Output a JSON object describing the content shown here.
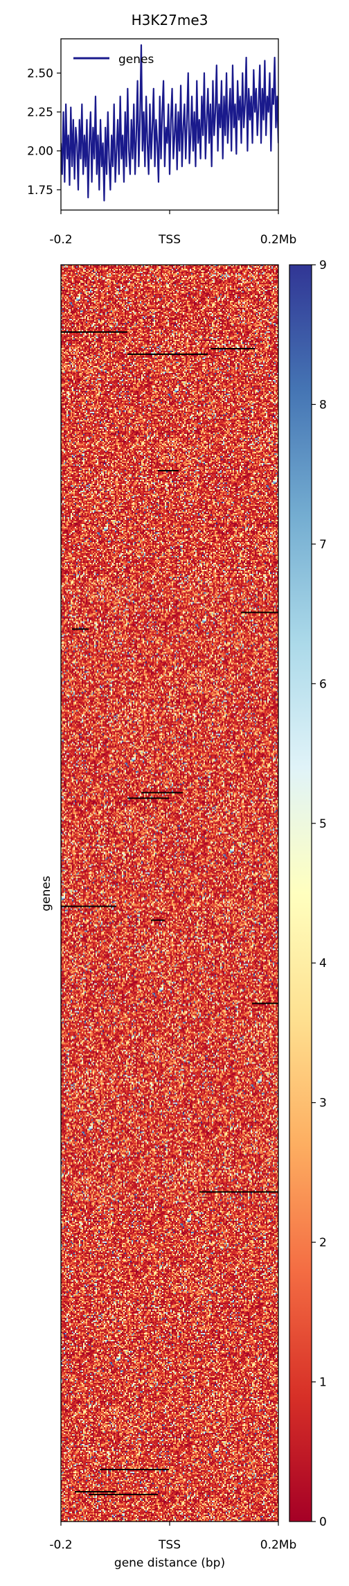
{
  "chart_data": [
    {
      "type": "line",
      "title": "H3K27me3",
      "x_ticks": [
        "-0.2",
        "TSS",
        "0.2Mb"
      ],
      "y_ticks": [
        "1.75",
        "2.00",
        "2.25",
        "2.50"
      ],
      "ylim": [
        1.62,
        2.72
      ],
      "legend": {
        "position": "top-left",
        "entries": [
          "genes"
        ]
      },
      "series": [
        {
          "name": "genes",
          "color": "#1a1a8c",
          "values": [
            2.05,
            1.85,
            2.25,
            1.8,
            2.3,
            1.95,
            2.1,
            1.78,
            2.28,
            1.9,
            2.2,
            1.82,
            2.15,
            2.05,
            1.75,
            2.2,
            1.95,
            2.3,
            1.85,
            2.1,
            1.9,
            2.2,
            1.7,
            2.05,
            2.25,
            1.8,
            2.15,
            1.95,
            2.35,
            1.85,
            2.1,
            1.75,
            2.2,
            1.9,
            2.05,
            1.68,
            2.15,
            1.85,
            2.25,
            1.95,
            1.75,
            2.1,
            1.9,
            2.3,
            1.8,
            2.0,
            2.2,
            1.85,
            2.35,
            1.95,
            2.1,
            1.8,
            2.25,
            1.9,
            2.4,
            2.0,
            1.85,
            2.2,
            1.95,
            2.3,
            1.85,
            2.1,
            2.45,
            1.9,
            2.2,
            2.68,
            2.0,
            2.25,
            1.9,
            2.35,
            2.05,
            1.85,
            2.3,
            1.95,
            2.15,
            2.4,
            1.9,
            2.2,
            2.05,
            1.8,
            2.35,
            1.95,
            2.25,
            2.45,
            1.9,
            2.15,
            2.05,
            2.3,
            1.85,
            2.2,
            2.4,
            1.95,
            2.1,
            2.3,
            1.88,
            2.25,
            2.0,
            2.42,
            1.9,
            2.15,
            2.3,
            1.95,
            2.2,
            2.5,
            1.92,
            2.1,
            2.35,
            2.0,
            2.25,
            1.9,
            2.45,
            2.05,
            2.2,
            1.95,
            2.35,
            2.1,
            2.5,
            1.95,
            2.2,
            2.4,
            2.05,
            2.3,
            1.9,
            2.45,
            2.1,
            2.25,
            2.55,
            2.0,
            2.3,
            2.15,
            2.45,
            1.95,
            2.35,
            2.1,
            2.5,
            2.05,
            2.25,
            2.4,
            2.0,
            2.55,
            2.15,
            2.3,
            1.98,
            2.45,
            2.2,
            2.35,
            2.05,
            2.5,
            2.15,
            2.3,
            2.6,
            2.0,
            2.4,
            2.2,
            2.35,
            2.05,
            2.52,
            2.25,
            2.4,
            2.1,
            2.3,
            2.55,
            2.05,
            2.4,
            2.2,
            2.58,
            2.1,
            2.35,
            2.25,
            2.5,
            2.0,
            2.4,
            2.3,
            2.6,
            2.15,
            2.35,
            2.05
          ]
        }
      ]
    },
    {
      "type": "heatmap",
      "xlabel": "gene distance (bp)",
      "ylabel": "genes",
      "x_ticks": [
        "-0.2",
        "TSS",
        "0.2Mb"
      ],
      "colorbar": {
        "min": 0,
        "max": 9,
        "ticks": [
          "0",
          "1",
          "2",
          "3",
          "4",
          "5",
          "6",
          "7",
          "8",
          "9"
        ],
        "colors": [
          "#a50026",
          "#d73027",
          "#f46d43",
          "#fdae61",
          "#fee090",
          "#ffffbf",
          "#e0f3f8",
          "#abd9e9",
          "#74add1",
          "#4575b4",
          "#313695"
        ]
      }
    }
  ]
}
